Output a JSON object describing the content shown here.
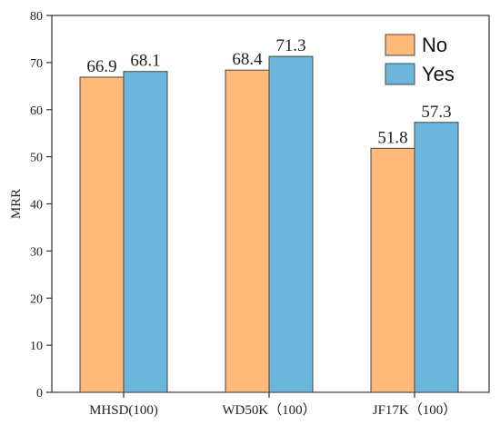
{
  "chart_data": {
    "type": "bar",
    "categories": [
      "MHSD(100)",
      "WD50K（100）",
      "JF17K（100）"
    ],
    "series": [
      {
        "name": "No",
        "values": [
          66.9,
          68.4,
          51.8
        ],
        "color": "#FDBA7A",
        "value_labels": [
          "66.9",
          "68.4",
          "51.8"
        ]
      },
      {
        "name": "Yes",
        "values": [
          68.1,
          71.3,
          57.3
        ],
        "color": "#6BB6DA",
        "value_labels": [
          "68.1",
          "71.3",
          "57.3"
        ]
      }
    ],
    "ylabel": "MRR",
    "ylim": [
      0,
      80
    ],
    "yticks": [
      "0",
      "10",
      "20",
      "30",
      "40",
      "50",
      "60",
      "70",
      "80"
    ],
    "grid": false,
    "legend_position": "top-right"
  }
}
